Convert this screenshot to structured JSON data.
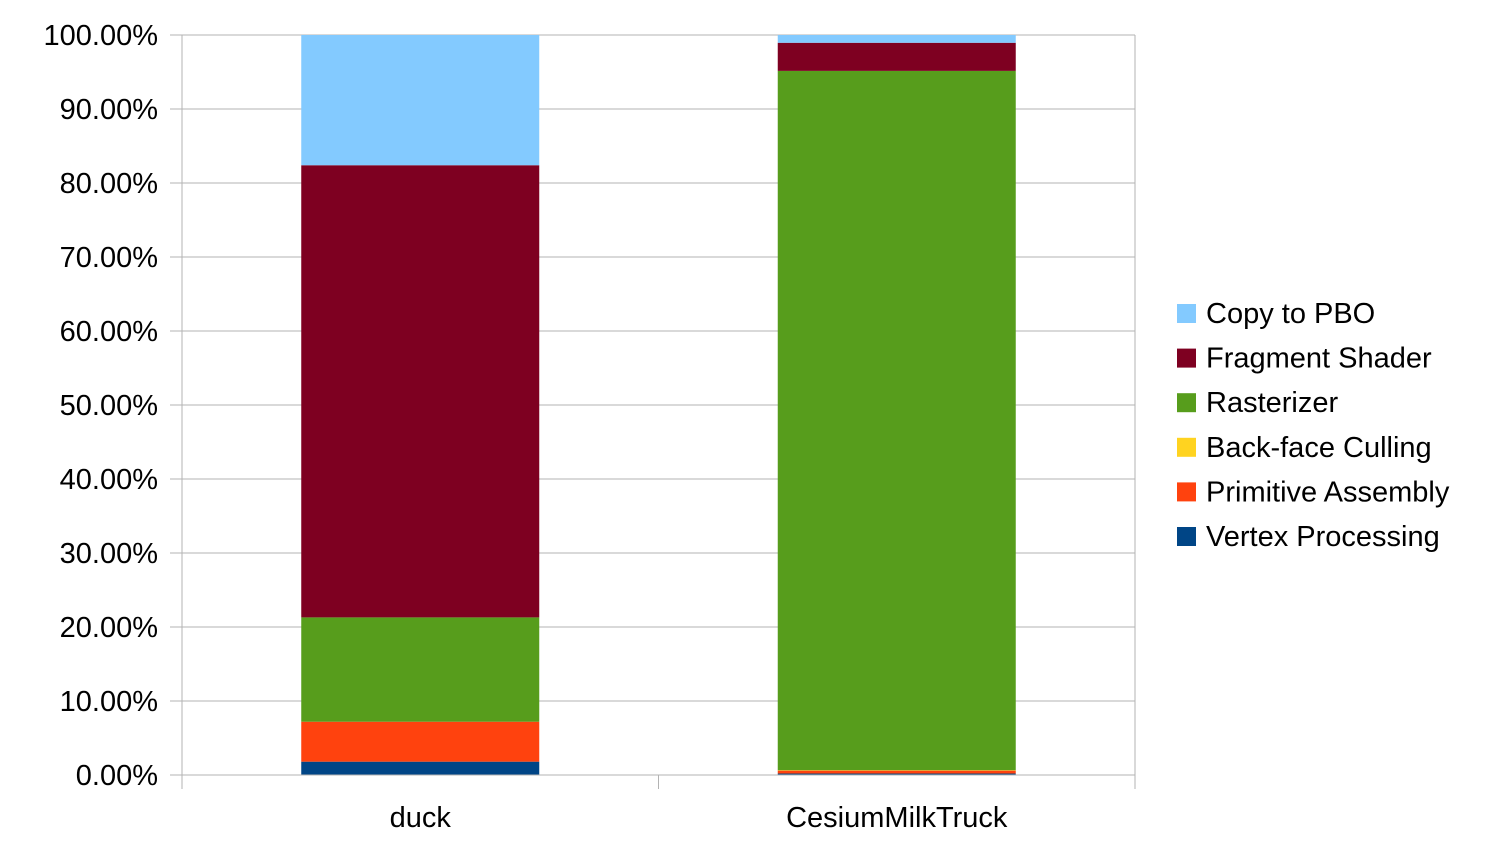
{
  "chart_data": {
    "type": "bar",
    "stacked": true,
    "percent": true,
    "categories": [
      "duck",
      "CesiumMilkTruck"
    ],
    "series": [
      {
        "name": "Vertex Processing",
        "color": "#004586",
        "values": [
          1.8,
          0.2
        ]
      },
      {
        "name": "Primitive Assembly",
        "color": "#ff420e",
        "values": [
          5.4,
          0.4
        ]
      },
      {
        "name": "Back-face Culling",
        "color": "#ffd320",
        "values": [
          0.0,
          0.05
        ]
      },
      {
        "name": "Rasterizer",
        "color": "#579d1c",
        "values": [
          14.1,
          94.5
        ]
      },
      {
        "name": "Fragment Shader",
        "color": "#7e0021",
        "values": [
          61.1,
          3.8
        ]
      },
      {
        "name": "Copy to PBO",
        "color": "#83caff",
        "values": [
          17.6,
          1.05
        ]
      }
    ],
    "y_ticks": [
      "0.00%",
      "10.00%",
      "20.00%",
      "30.00%",
      "40.00%",
      "50.00%",
      "60.00%",
      "70.00%",
      "80.00%",
      "90.00%",
      "100.00%"
    ],
    "ylim": [
      0,
      100
    ],
    "grid": true,
    "legend_position": "right",
    "legend_order": [
      "Copy to PBO",
      "Fragment Shader",
      "Rasterizer",
      "Back-face Culling",
      "Primitive Assembly",
      "Vertex Processing"
    ]
  }
}
